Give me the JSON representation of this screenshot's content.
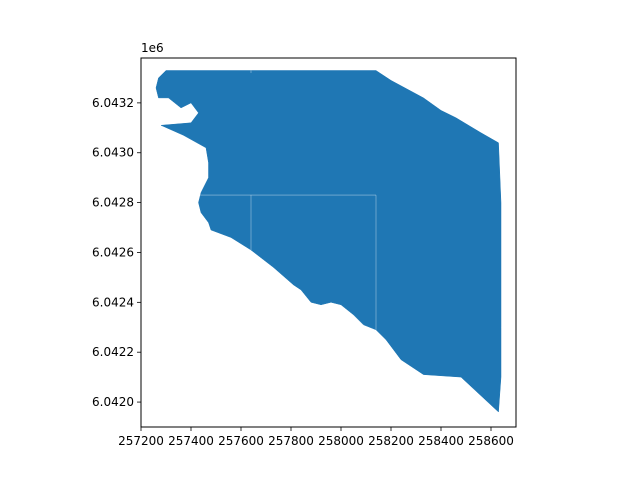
{
  "chart_data": {
    "type": "map",
    "title": "",
    "xlabel": "",
    "ylabel": "",
    "y_offset_label": "1e6",
    "xlim": [
      257200,
      258700
    ],
    "ylim": [
      6041900,
      6043380
    ],
    "x_ticks": [
      257200,
      257400,
      257600,
      257800,
      258000,
      258200,
      258400,
      258600
    ],
    "x_tick_labels": [
      "257200",
      "257400",
      "257600",
      "257800",
      "258000",
      "258200",
      "258400",
      "258600"
    ],
    "y_ticks": [
      6042000,
      6042200,
      6042400,
      6042600,
      6042800,
      6043000,
      6043200
    ],
    "y_tick_labels": [
      "6.0420",
      "6.0422",
      "6.0424",
      "6.0426",
      "6.0428",
      "6.0430",
      "6.0432"
    ],
    "grid": false,
    "fill_color": "#1f77b4",
    "edge_color": "#ffffff",
    "outline": [
      [
        257300,
        6043330
      ],
      [
        257270,
        6043300
      ],
      [
        257260,
        6043260
      ],
      [
        257270,
        6043220
      ],
      [
        257310,
        6043220
      ],
      [
        257360,
        6043180
      ],
      [
        257400,
        6043200
      ],
      [
        257430,
        6043160
      ],
      [
        257400,
        6043120
      ],
      [
        257280,
        6043110
      ],
      [
        257370,
        6043070
      ],
      [
        257460,
        6043020
      ],
      [
        257470,
        6042960
      ],
      [
        257470,
        6042900
      ],
      [
        257440,
        6042840
      ],
      [
        257430,
        6042800
      ],
      [
        257440,
        6042760
      ],
      [
        257470,
        6042720
      ],
      [
        257480,
        6042690
      ],
      [
        257560,
        6042660
      ],
      [
        257640,
        6042610
      ],
      [
        257730,
        6042540
      ],
      [
        257810,
        6042470
      ],
      [
        257840,
        6042450
      ],
      [
        257880,
        6042400
      ],
      [
        257920,
        6042390
      ],
      [
        257960,
        6042400
      ],
      [
        258000,
        6042390
      ],
      [
        258050,
        6042350
      ],
      [
        258090,
        6042310
      ],
      [
        258140,
        6042290
      ],
      [
        258180,
        6042250
      ],
      [
        258240,
        6042170
      ],
      [
        258330,
        6042110
      ],
      [
        258480,
        6042100
      ],
      [
        258630,
        6041960
      ],
      [
        258640,
        6042100
      ],
      [
        258640,
        6042300
      ],
      [
        258640,
        6042600
      ],
      [
        258640,
        6042800
      ],
      [
        258630,
        6043040
      ],
      [
        258560,
        6043080
      ],
      [
        258460,
        6043140
      ],
      [
        258400,
        6043170
      ],
      [
        258330,
        6043220
      ],
      [
        258200,
        6043290
      ],
      [
        258140,
        6043330
      ]
    ],
    "inner_lines": [
      [
        [
          257430,
          6042830
        ],
        [
          258140,
          6042830
        ]
      ],
      [
        [
          257640,
          6042830
        ],
        [
          257640,
          6042610
        ]
      ],
      [
        [
          258140,
          6042830
        ],
        [
          258140,
          6042290
        ]
      ],
      [
        [
          257640,
          6043330
        ],
        [
          257640,
          6043320
        ]
      ]
    ]
  }
}
